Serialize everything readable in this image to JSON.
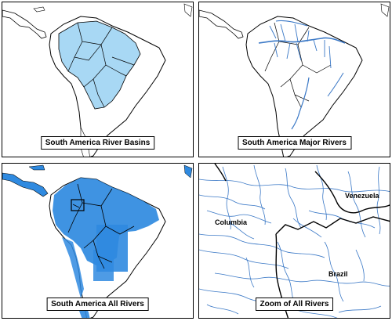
{
  "panels": {
    "basins": {
      "caption": "South America River Basins"
    },
    "major": {
      "caption": "South America Major Rivers"
    },
    "all": {
      "caption": "South America All Rivers"
    },
    "zoom": {
      "caption": "Zoom of All Rivers"
    }
  },
  "zoom_labels": {
    "columbia": "Columbia",
    "venezuela": "Venezuela",
    "brazil": "Brazil"
  },
  "colors": {
    "basin_fill": "#a8d8f4",
    "river": "#3a78c6",
    "dense_fill": "#2f8ae0",
    "land": "#ffffff",
    "border": "#000000"
  }
}
